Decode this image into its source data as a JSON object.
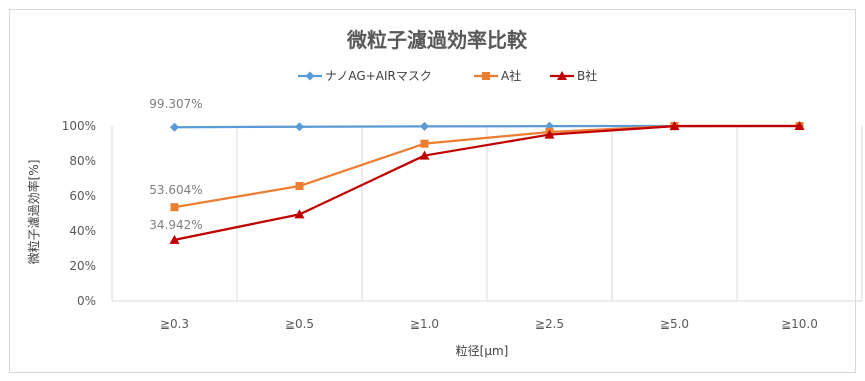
{
  "chart_data": {
    "type": "line",
    "title": "微粒子濾過効率比較",
    "xlabel": "粒径[μm]",
    "ylabel": "微粒子濾過効率[%]",
    "categories": [
      "≧0.3",
      "≧0.5",
      "≧1.0",
      "≧2.5",
      "≧5.0",
      "≧10.0"
    ],
    "ylim": [
      0,
      100
    ],
    "yticks": [
      "0%",
      "20%",
      "40%",
      "60%",
      "80%",
      "100%"
    ],
    "grid": "vertical",
    "legend": "top",
    "series": [
      {
        "name": "ナノAG+AIRマスク",
        "color": "#5b9bd5",
        "marker": "diamond",
        "values": [
          99.307,
          99.6,
          99.8,
          99.9,
          100,
          100
        ]
      },
      {
        "name": "A社",
        "color": "#ed7d31",
        "marker": "square",
        "values": [
          53.604,
          65.7,
          89.9,
          96.6,
          100,
          100
        ]
      },
      {
        "name": "B社",
        "color": "#c00000",
        "marker": "triangle",
        "values": [
          34.942,
          49.5,
          83.1,
          95.1,
          99.9,
          100
        ]
      }
    ],
    "annotations": [
      "99.307%",
      "53.604%",
      "34.942%"
    ]
  }
}
